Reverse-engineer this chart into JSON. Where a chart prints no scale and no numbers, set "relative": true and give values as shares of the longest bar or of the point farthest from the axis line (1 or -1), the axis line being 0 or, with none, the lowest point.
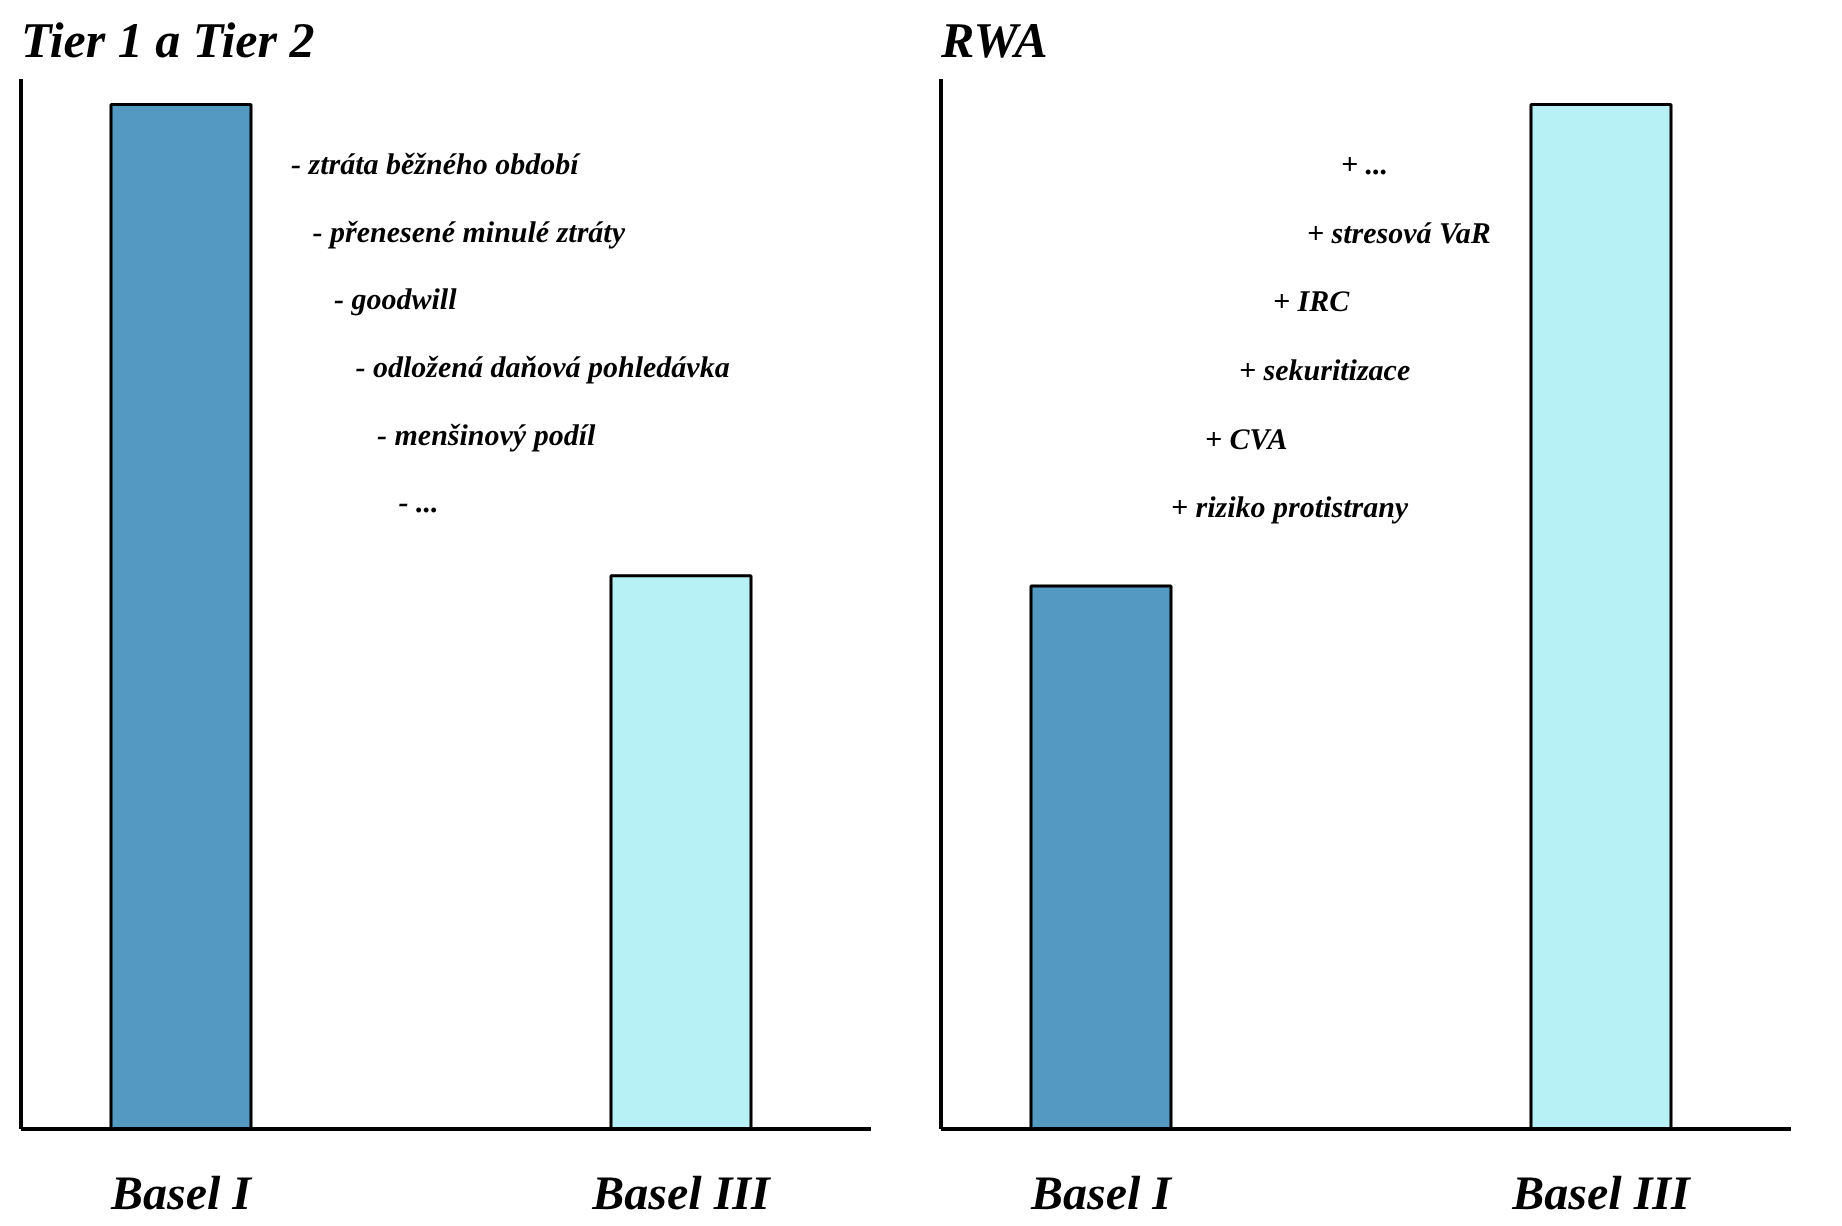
{
  "chart_data": [
    {
      "type": "bar",
      "title": "Tier 1 a Tier 2",
      "categories": [
        "Basel I",
        "Basel III"
      ],
      "values": [
        1,
        0.54
      ],
      "colors": [
        "#5499c1",
        "#b7f1f6"
      ],
      "relative": true,
      "annotations": [
        "- ztráta běžného období",
        "- přenesené minulé ztráty",
        "- goodwill",
        "- odložená daňová pohledávka",
        "- menšinový podíl",
        "- ..."
      ]
    },
    {
      "type": "bar",
      "title": "RWA",
      "categories": [
        "Basel I",
        "Basel III"
      ],
      "values": [
        0.53,
        1
      ],
      "colors": [
        "#5499c1",
        "#b7f1f6"
      ],
      "relative": true,
      "annotations": [
        "+ ...",
        "+ stresová VaR",
        "+ IRC",
        "+ sekuritizace",
        "+ CVA",
        "+ riziko protistrany"
      ]
    }
  ]
}
